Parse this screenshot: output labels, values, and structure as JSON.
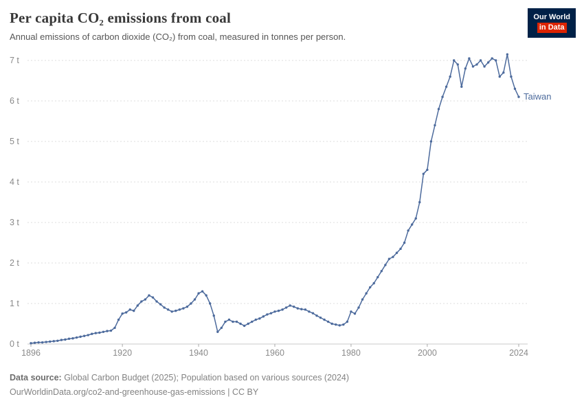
{
  "header": {
    "title": "Per capita CO₂ emissions from coal",
    "subtitle": "Annual emissions of carbon dioxide (CO₂) from coal, measured in tonnes per person.",
    "logo": {
      "line1": "Our World",
      "line2": "in Data"
    }
  },
  "chart_data": {
    "type": "line",
    "title": "Per capita CO₂ emissions from coal",
    "entity": "Taiwan",
    "end_label": "Taiwan",
    "xlim": [
      1896,
      2024
    ],
    "ylim": [
      0,
      7
    ],
    "xticks": [
      1896,
      1920,
      1940,
      1960,
      1980,
      2000,
      2024
    ],
    "yticks": [
      0,
      1,
      2,
      3,
      4,
      5,
      6,
      7
    ],
    "ytick_suffix": " t",
    "grid": "dashed-horizontal",
    "legend_position": "end-of-line-label",
    "x": [
      1896,
      1897,
      1898,
      1899,
      1900,
      1901,
      1902,
      1903,
      1904,
      1905,
      1906,
      1907,
      1908,
      1909,
      1910,
      1911,
      1912,
      1913,
      1914,
      1915,
      1916,
      1917,
      1918,
      1919,
      1920,
      1921,
      1922,
      1923,
      1924,
      1925,
      1926,
      1927,
      1928,
      1929,
      1930,
      1931,
      1932,
      1933,
      1934,
      1935,
      1936,
      1937,
      1938,
      1939,
      1940,
      1941,
      1942,
      1943,
      1944,
      1945,
      1946,
      1947,
      1948,
      1949,
      1950,
      1951,
      1952,
      1953,
      1954,
      1955,
      1956,
      1957,
      1958,
      1959,
      1960,
      1961,
      1962,
      1963,
      1964,
      1965,
      1966,
      1967,
      1968,
      1969,
      1970,
      1971,
      1972,
      1973,
      1974,
      1975,
      1976,
      1977,
      1978,
      1979,
      1980,
      1981,
      1982,
      1983,
      1984,
      1985,
      1986,
      1987,
      1988,
      1989,
      1990,
      1991,
      1992,
      1993,
      1994,
      1995,
      1996,
      1997,
      1998,
      1999,
      2000,
      2001,
      2002,
      2003,
      2004,
      2005,
      2006,
      2007,
      2008,
      2009,
      2010,
      2011,
      2012,
      2013,
      2014,
      2015,
      2016,
      2017,
      2018,
      2019,
      2020,
      2021,
      2022,
      2023,
      2024
    ],
    "series": [
      {
        "name": "Taiwan",
        "color": "#4c6a9c",
        "values": [
          0.02,
          0.03,
          0.04,
          0.04,
          0.05,
          0.06,
          0.07,
          0.08,
          0.1,
          0.11,
          0.13,
          0.14,
          0.16,
          0.18,
          0.2,
          0.22,
          0.25,
          0.27,
          0.28,
          0.3,
          0.32,
          0.33,
          0.4,
          0.6,
          0.75,
          0.78,
          0.85,
          0.82,
          0.95,
          1.05,
          1.1,
          1.2,
          1.15,
          1.05,
          0.98,
          0.9,
          0.85,
          0.8,
          0.82,
          0.85,
          0.88,
          0.92,
          1.0,
          1.1,
          1.25,
          1.3,
          1.2,
          1.0,
          0.7,
          0.3,
          0.4,
          0.55,
          0.6,
          0.55,
          0.55,
          0.5,
          0.45,
          0.5,
          0.55,
          0.6,
          0.63,
          0.68,
          0.73,
          0.76,
          0.8,
          0.82,
          0.85,
          0.9,
          0.95,
          0.92,
          0.88,
          0.86,
          0.85,
          0.8,
          0.76,
          0.7,
          0.65,
          0.6,
          0.55,
          0.5,
          0.48,
          0.46,
          0.48,
          0.55,
          0.8,
          0.75,
          0.9,
          1.1,
          1.25,
          1.4,
          1.5,
          1.65,
          1.8,
          1.95,
          2.1,
          2.15,
          2.25,
          2.35,
          2.5,
          2.8,
          2.95,
          3.1,
          3.5,
          4.2,
          4.3,
          5.0,
          5.4,
          5.8,
          6.1,
          6.35,
          6.6,
          7.0,
          6.9,
          6.35,
          6.8,
          7.05,
          6.85,
          6.9,
          7.0,
          6.85,
          6.95,
          7.05,
          7.0,
          6.6,
          6.7,
          7.15,
          6.6,
          6.3,
          6.1
        ]
      }
    ]
  },
  "footer": {
    "source_label": "Data source:",
    "source_text": " Global Carbon Budget (2025); Population based on various sources (2024)",
    "link_line": "OurWorldinData.org/co2-and-greenhouse-gas-emissions | CC BY"
  },
  "colors": {
    "line": "#4c6a9c",
    "grid": "#dcdcdc",
    "axis_text": "#8a8a8a",
    "logo_bg": "#002147",
    "logo_red": "#dc2402"
  }
}
